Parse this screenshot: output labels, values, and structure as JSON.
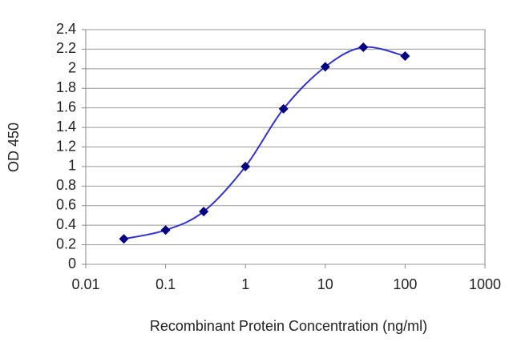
{
  "chart_data": {
    "type": "line",
    "xlabel": "Recombinant Protein Concentration (ng/ml)",
    "ylabel": "OD 450",
    "x": [
      0.03,
      0.1,
      0.3,
      1,
      3,
      10,
      30,
      100
    ],
    "series": [
      {
        "color": "#3333cc",
        "marker_color": "#000080",
        "values": [
          0.26,
          0.35,
          0.54,
          1.0,
          1.59,
          2.02,
          2.22,
          2.13
        ]
      }
    ],
    "xscale": "log",
    "xlim": [
      0.01,
      1000
    ],
    "xticks": [
      0.01,
      0.1,
      1,
      10,
      100,
      1000
    ],
    "ylim": [
      0,
      2.4
    ],
    "yticks": [
      0,
      0.2,
      0.4,
      0.6,
      0.8,
      1,
      1.2,
      1.4,
      1.6,
      1.8,
      2,
      2.2,
      2.4
    ],
    "grid": true
  }
}
